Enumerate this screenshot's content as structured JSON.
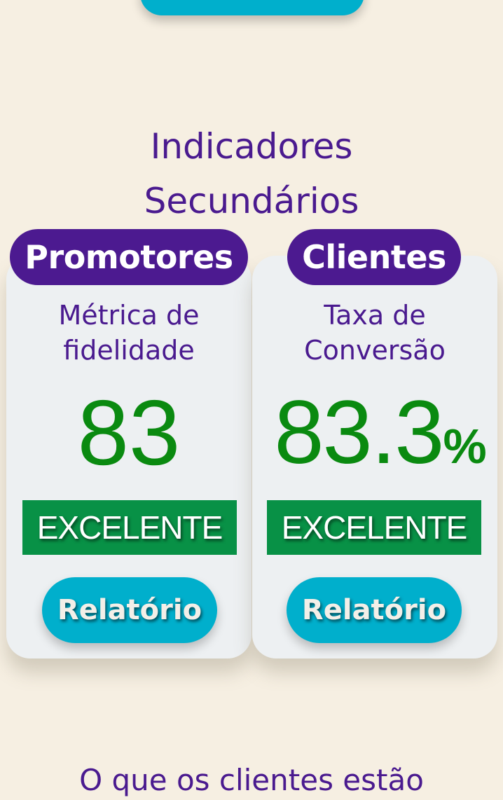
{
  "section": {
    "title_line1": "Indicadores",
    "title_line2": "Secundários"
  },
  "cards": [
    {
      "pill_label": "Promotores",
      "metric_line1": "Métrica de",
      "metric_line2": "fidelidade",
      "value": "83",
      "unit": "",
      "status": "EXCELENTE",
      "button_label": "Relatório"
    },
    {
      "pill_label": "Clientes",
      "metric_line1": "Taxa de",
      "metric_line2": "Conversão",
      "value": "83.3",
      "unit": "%",
      "status": "EXCELENTE",
      "button_label": "Relatório"
    }
  ],
  "bottom": {
    "title": "O que os clientes estão"
  },
  "colors": {
    "background": "#f6efe2",
    "card": "#edf0f2",
    "pill": "#4c1a90",
    "heading": "#4a1a8f",
    "value": "#0a8a10",
    "status_badge": "#089146",
    "button": "#00afcc"
  }
}
